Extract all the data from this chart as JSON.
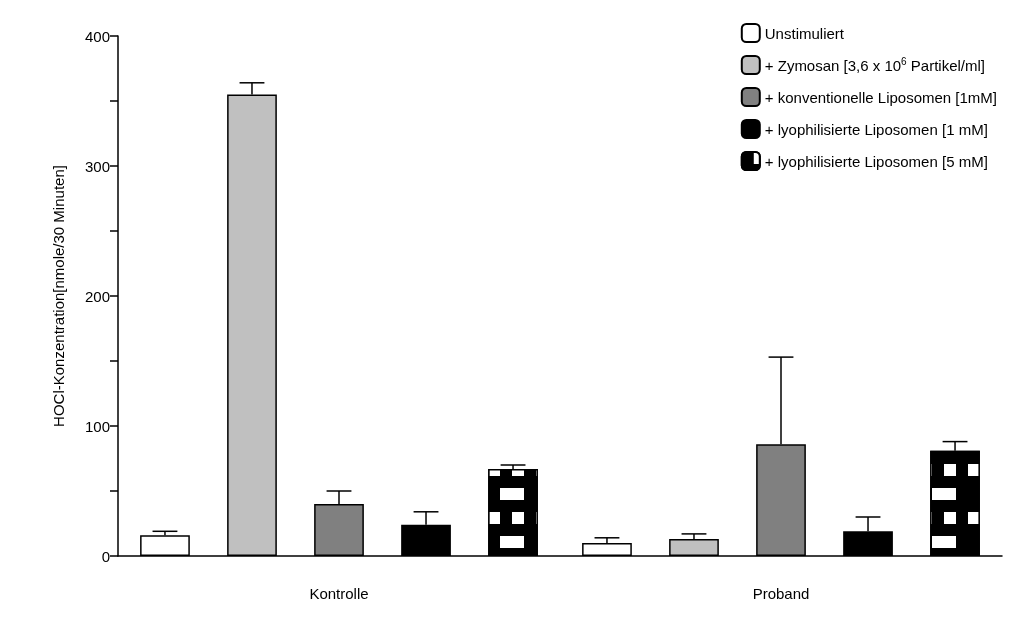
{
  "chart_data": {
    "type": "bar",
    "ylabel": "HOCl-Konzentration[nmole/30 Minuten]",
    "categories": [
      "Kontrolle",
      "Proband"
    ],
    "series": [
      {
        "name": "Unstimuliert",
        "color": "#ffffff",
        "values": [
          16,
          10
        ],
        "errors": [
          [
            16,
            19
          ],
          [
            10,
            14
          ]
        ]
      },
      {
        "name": "+ Zymosan [3,6 x 10$^{6}$ Partikel/ml]",
        "color": "#c0c0c0",
        "values": [
          355,
          13
        ],
        "errors": [
          [
            355,
            364
          ],
          [
            13,
            17
          ]
        ]
      },
      {
        "name": "+ konventionelle Liposomen [1mM]",
        "color": "#808080",
        "values": [
          40,
          86
        ],
        "errors": [
          [
            40,
            50
          ],
          [
            86,
            153
          ]
        ]
      },
      {
        "name": "+ lyophilisierte Liposomen [1 mM]",
        "color": "#000000",
        "values": [
          24,
          19
        ],
        "errors": [
          [
            24,
            34
          ],
          [
            19,
            30
          ]
        ]
      },
      {
        "name": "+ lyophilisierte Liposomen [5 mM]",
        "color": "#000000",
        "values": [
          67,
          81
        ],
        "errors": [
          [
            67,
            70
          ],
          [
            81,
            88
          ]
        ]
      }
    ],
    "ylim": [
      0,
      400
    ],
    "yticks": [
      0,
      {
        "value": 50,
        "label": null
      },
      100,
      {
        "value": 150,
        "label": null
      },
      200,
      {
        "value": 250,
        "label": null
      },
      300,
      {
        "value": 350,
        "label": null
      },
      400
    ],
    "legend": "top right",
    "grid": false
  }
}
